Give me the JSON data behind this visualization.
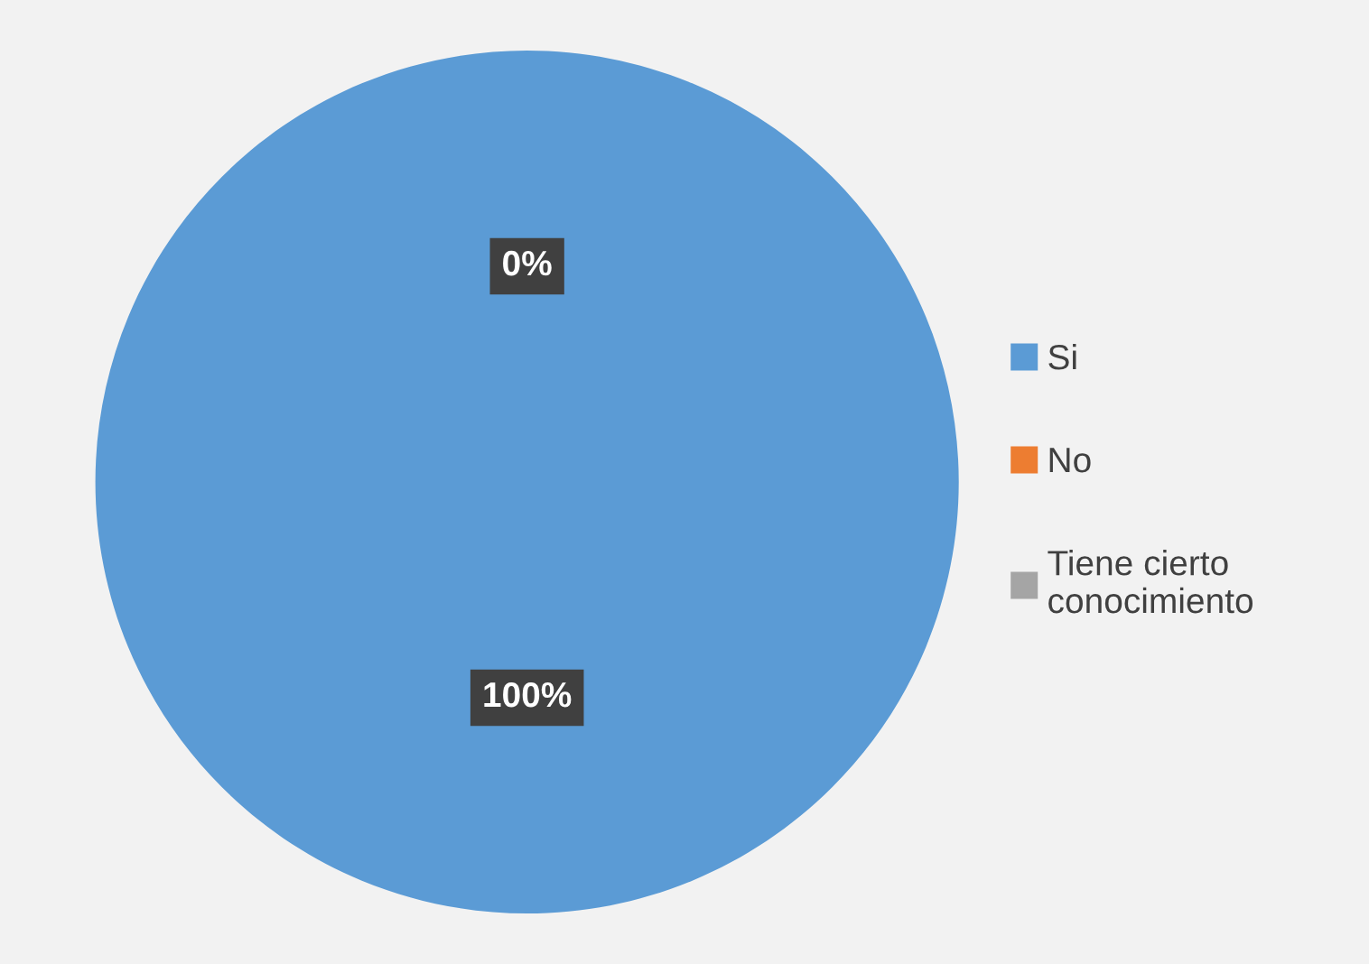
{
  "chart_data": {
    "type": "pie",
    "categories": [
      "Si",
      "No",
      "Tiene cierto\nconocimiento"
    ],
    "values": [
      100,
      0,
      0
    ],
    "colors": [
      "#5b9bd5",
      "#ed7d31",
      "#a5a5a5"
    ],
    "value_labels": [
      "100%",
      "0%",
      null
    ],
    "legend": "right"
  }
}
